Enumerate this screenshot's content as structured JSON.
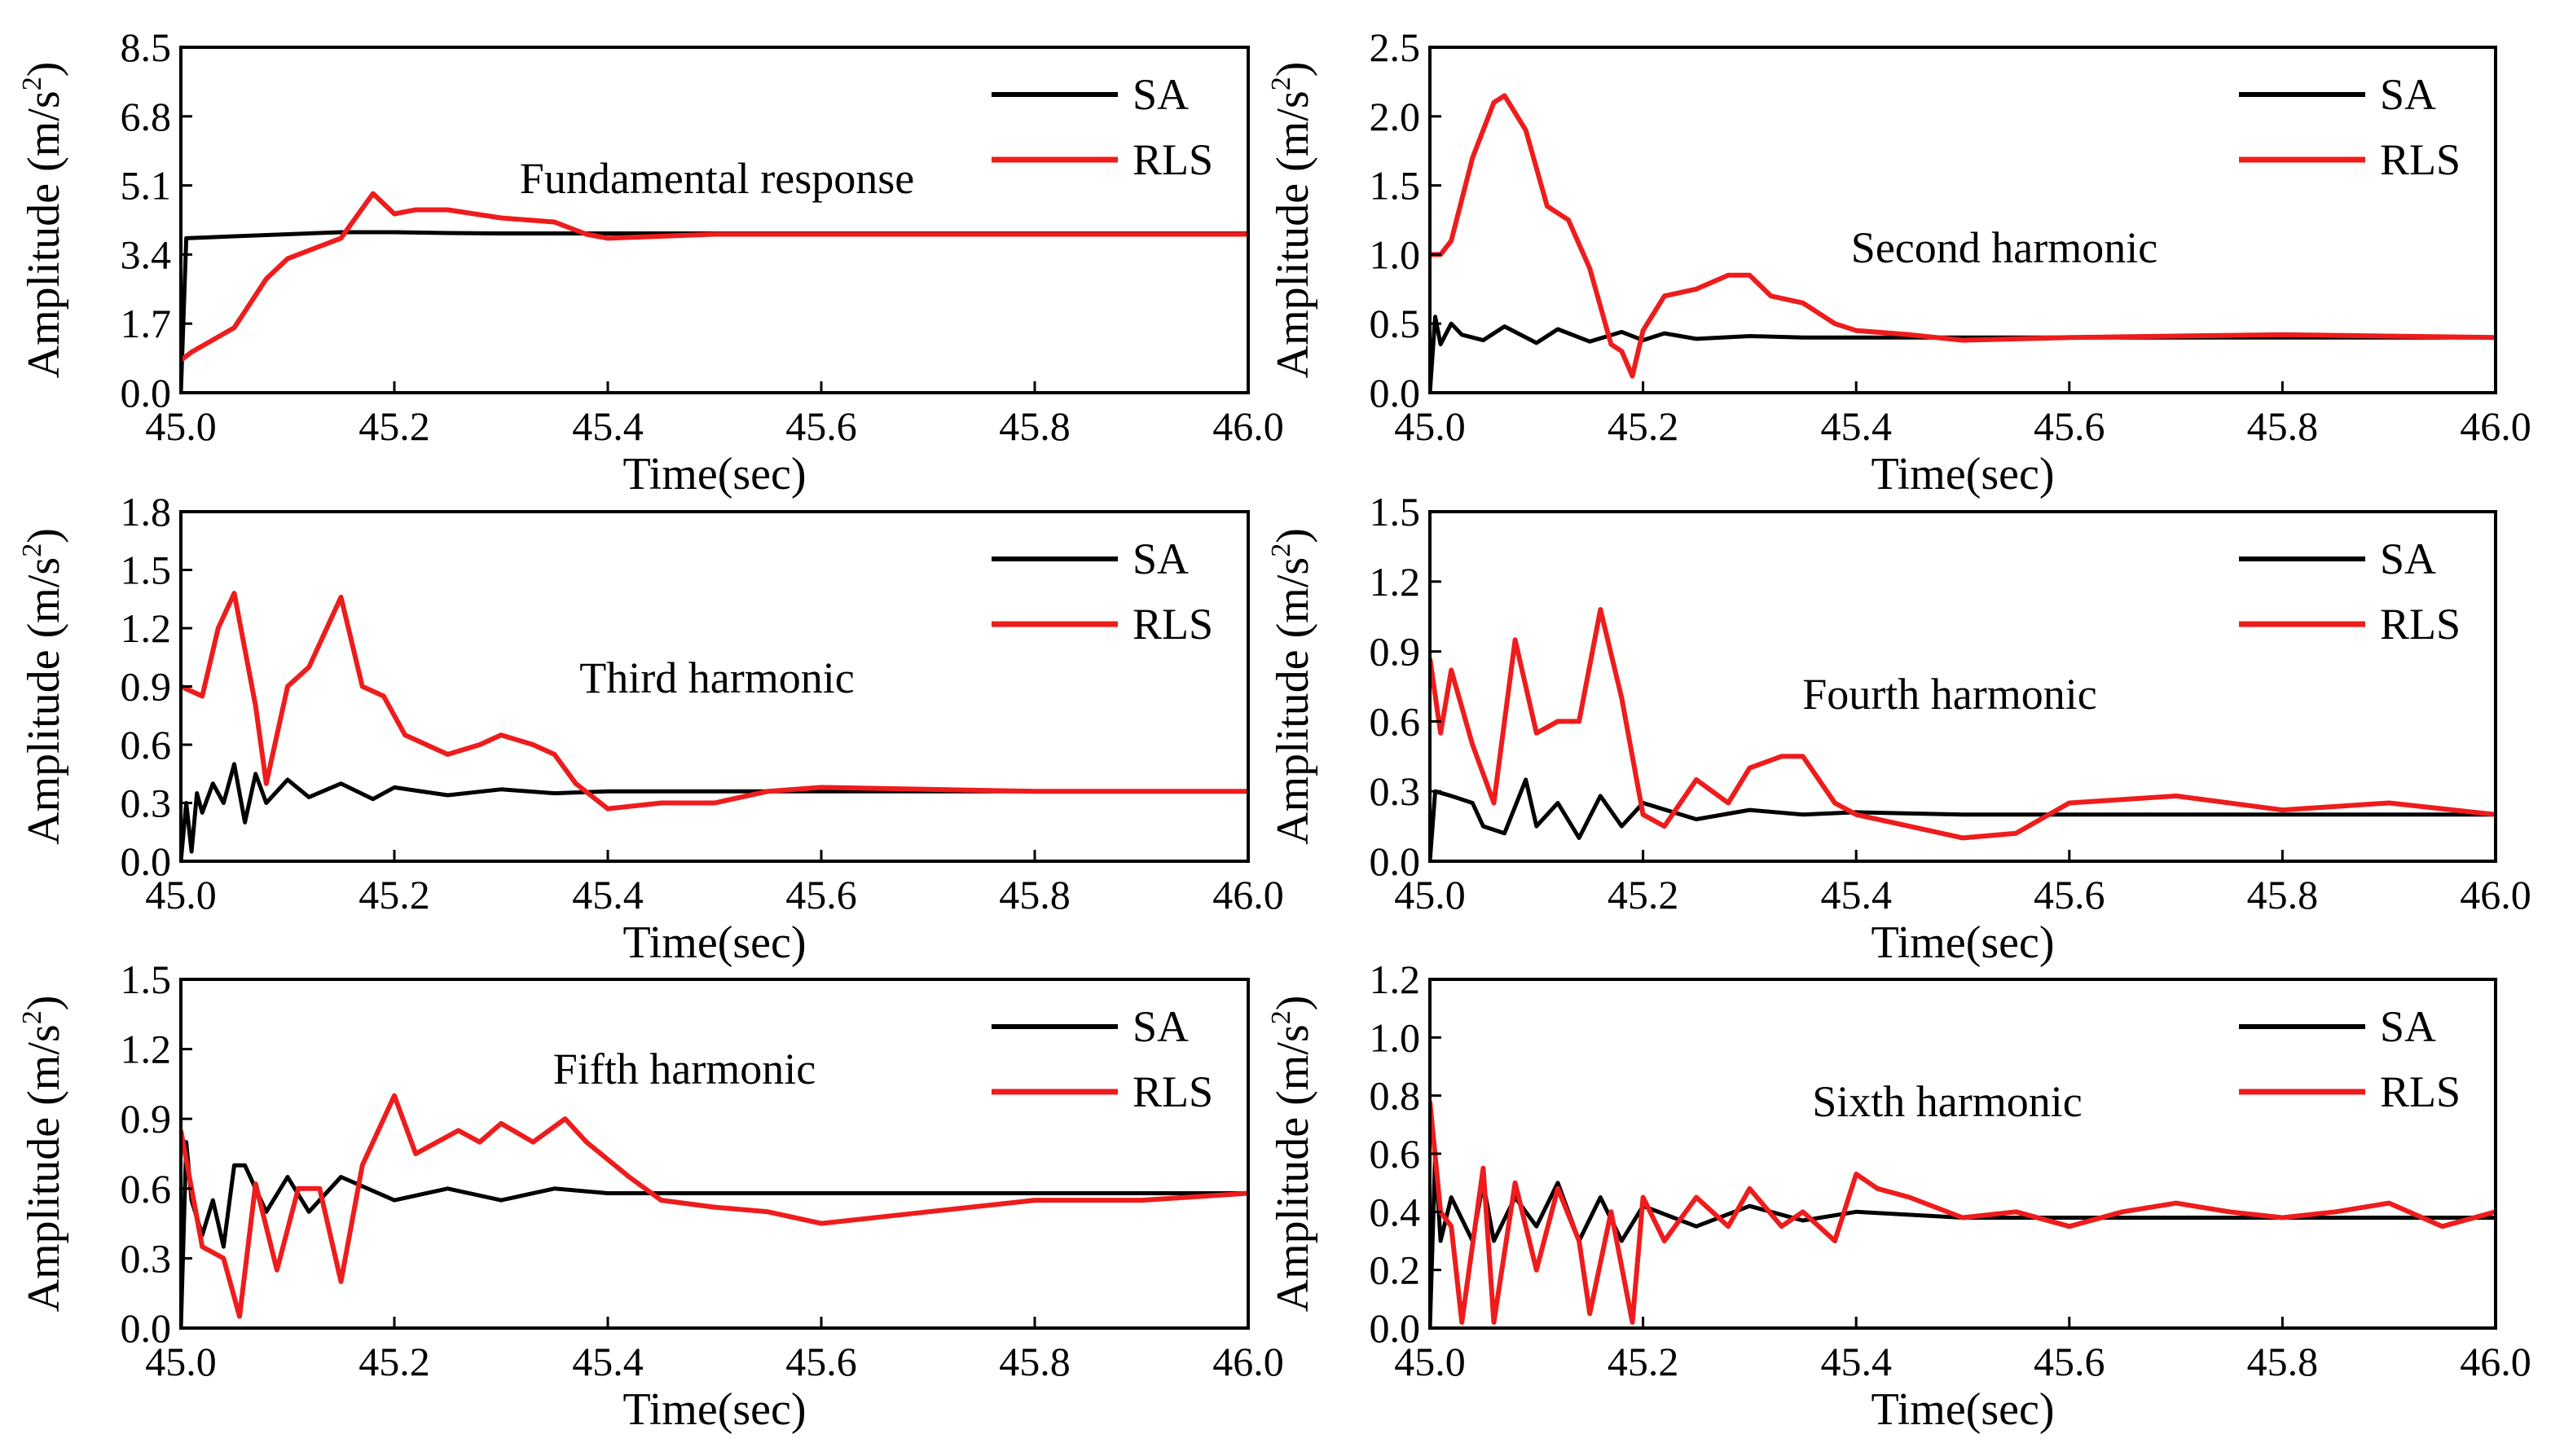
{
  "figure": {
    "series_colors": {
      "SA": "#000000",
      "RLS": "#ee1c1c"
    }
  },
  "chart_data": [
    {
      "type": "line",
      "title": "Fundamental response",
      "xlabel": "Time(sec)",
      "ylabel": "Amplitude (m/s",
      "ylabel_sup": "2",
      "ylabel_close": ")",
      "xlim": [
        45.0,
        46.0
      ],
      "ylim": [
        0.0,
        8.5
      ],
      "xticks": [
        "45.0",
        "45.2",
        "45.4",
        "45.6",
        "45.8",
        "46.0"
      ],
      "yticks": [
        "0.0",
        "1.7",
        "3.4",
        "5.1",
        "6.8",
        "8.5"
      ],
      "legend": [
        "SA",
        "RLS"
      ],
      "legend_position": "top-right",
      "series": [
        {
          "name": "SA",
          "x": [
            45.0,
            45.005,
            45.05,
            45.1,
            45.15,
            45.2,
            45.25,
            45.3,
            45.4,
            45.5,
            45.6,
            45.8,
            46.0
          ],
          "y": [
            0.0,
            3.8,
            3.85,
            3.9,
            3.95,
            3.95,
            3.93,
            3.92,
            3.92,
            3.92,
            3.92,
            3.92,
            3.92
          ]
        },
        {
          "name": "RLS",
          "x": [
            45.0,
            45.01,
            45.03,
            45.05,
            45.08,
            45.1,
            45.15,
            45.18,
            45.2,
            45.22,
            45.25,
            45.3,
            45.35,
            45.38,
            45.4,
            45.5,
            45.6,
            45.8,
            46.0
          ],
          "y": [
            0.8,
            1.0,
            1.3,
            1.6,
            2.8,
            3.3,
            3.8,
            4.9,
            4.4,
            4.5,
            4.5,
            4.3,
            4.2,
            3.9,
            3.8,
            3.9,
            3.9,
            3.9,
            3.9
          ]
        }
      ]
    },
    {
      "type": "line",
      "title": "Second harmonic",
      "xlabel": "Time(sec)",
      "ylabel": "Amplitude (m/s",
      "ylabel_sup": "2",
      "ylabel_close": ")",
      "xlim": [
        45.0,
        46.0
      ],
      "ylim": [
        0.0,
        2.5
      ],
      "xticks": [
        "45.0",
        "45.2",
        "45.4",
        "45.6",
        "45.8",
        "46.0"
      ],
      "yticks": [
        "0.0",
        "0.5",
        "1.0",
        "1.5",
        "2.0",
        "2.5"
      ],
      "legend": [
        "SA",
        "RLS"
      ],
      "legend_position": "top-right",
      "series": [
        {
          "name": "SA",
          "x": [
            45.0,
            45.005,
            45.01,
            45.02,
            45.03,
            45.05,
            45.07,
            45.1,
            45.12,
            45.15,
            45.18,
            45.2,
            45.22,
            45.25,
            45.3,
            45.35,
            45.4,
            45.5,
            45.6,
            45.8,
            46.0
          ],
          "y": [
            0.0,
            0.55,
            0.35,
            0.5,
            0.42,
            0.38,
            0.48,
            0.36,
            0.46,
            0.37,
            0.44,
            0.38,
            0.43,
            0.39,
            0.41,
            0.4,
            0.4,
            0.4,
            0.4,
            0.4,
            0.4
          ]
        },
        {
          "name": "RLS",
          "x": [
            45.0,
            45.01,
            45.02,
            45.04,
            45.06,
            45.07,
            45.09,
            45.11,
            45.13,
            45.15,
            45.17,
            45.18,
            45.19,
            45.2,
            45.22,
            45.25,
            45.28,
            45.3,
            45.32,
            45.35,
            45.38,
            45.4,
            45.45,
            45.5,
            45.6,
            45.8,
            46.0
          ],
          "y": [
            1.0,
            1.0,
            1.1,
            1.7,
            2.1,
            2.15,
            1.9,
            1.35,
            1.25,
            0.9,
            0.35,
            0.3,
            0.12,
            0.45,
            0.7,
            0.75,
            0.85,
            0.85,
            0.7,
            0.65,
            0.5,
            0.45,
            0.42,
            0.38,
            0.4,
            0.42,
            0.4
          ]
        }
      ]
    },
    {
      "type": "line",
      "title": "Third harmonic",
      "xlabel": "Time(sec)",
      "ylabel": "Amplitude (m/s",
      "ylabel_sup": "2",
      "ylabel_close": ")",
      "xlim": [
        45.0,
        46.0
      ],
      "ylim": [
        0.0,
        1.8
      ],
      "xticks": [
        "45.0",
        "45.2",
        "45.4",
        "45.6",
        "45.8",
        "46.0"
      ],
      "yticks": [
        "0.0",
        "0.3",
        "0.6",
        "0.9",
        "1.2",
        "1.5",
        "1.8"
      ],
      "legend": [
        "SA",
        "RLS"
      ],
      "legend_position": "top-right",
      "series": [
        {
          "name": "SA",
          "x": [
            45.0,
            45.005,
            45.01,
            45.015,
            45.02,
            45.03,
            45.04,
            45.05,
            45.06,
            45.07,
            45.08,
            45.1,
            45.12,
            45.15,
            45.18,
            45.2,
            45.25,
            45.3,
            45.35,
            45.4,
            45.5,
            45.6,
            45.8,
            46.0
          ],
          "y": [
            0.0,
            0.3,
            0.05,
            0.35,
            0.25,
            0.4,
            0.3,
            0.5,
            0.2,
            0.45,
            0.3,
            0.42,
            0.33,
            0.4,
            0.32,
            0.38,
            0.34,
            0.37,
            0.35,
            0.36,
            0.36,
            0.36,
            0.36,
            0.36
          ]
        },
        {
          "name": "RLS",
          "x": [
            45.0,
            45.02,
            45.035,
            45.05,
            45.07,
            45.08,
            45.1,
            45.12,
            45.15,
            45.17,
            45.19,
            45.21,
            45.23,
            45.25,
            45.28,
            45.3,
            45.33,
            45.35,
            45.37,
            45.4,
            45.45,
            45.5,
            45.55,
            45.6,
            45.8,
            46.0
          ],
          "y": [
            0.9,
            0.85,
            1.2,
            1.38,
            0.8,
            0.4,
            0.9,
            1.0,
            1.36,
            0.9,
            0.85,
            0.65,
            0.6,
            0.55,
            0.6,
            0.65,
            0.6,
            0.55,
            0.4,
            0.27,
            0.3,
            0.3,
            0.36,
            0.38,
            0.36,
            0.36
          ]
        }
      ]
    },
    {
      "type": "line",
      "title": "Fourth harmonic",
      "xlabel": "Time(sec)",
      "ylabel": "Amplitude (m/s",
      "ylabel_sup": "2",
      "ylabel_close": ")",
      "xlim": [
        45.0,
        46.0
      ],
      "ylim": [
        0.0,
        1.5
      ],
      "xticks": [
        "45.0",
        "45.2",
        "45.4",
        "45.6",
        "45.8",
        "46.0"
      ],
      "yticks": [
        "0.0",
        "0.3",
        "0.6",
        "0.9",
        "1.2",
        "1.5"
      ],
      "legend": [
        "SA",
        "RLS"
      ],
      "legend_position": "top-right",
      "series": [
        {
          "name": "SA",
          "x": [
            45.0,
            45.005,
            45.02,
            45.04,
            45.05,
            45.07,
            45.09,
            45.1,
            45.12,
            45.14,
            45.16,
            45.18,
            45.2,
            45.25,
            45.3,
            45.35,
            45.4,
            45.5,
            45.6,
            45.8,
            46.0
          ],
          "y": [
            0.0,
            0.3,
            0.28,
            0.25,
            0.15,
            0.12,
            0.35,
            0.15,
            0.25,
            0.1,
            0.28,
            0.15,
            0.25,
            0.18,
            0.22,
            0.2,
            0.21,
            0.2,
            0.2,
            0.2,
            0.2
          ]
        },
        {
          "name": "RLS",
          "x": [
            45.0,
            45.01,
            45.02,
            45.04,
            45.06,
            45.08,
            45.1,
            45.12,
            45.14,
            45.16,
            45.18,
            45.2,
            45.22,
            45.25,
            45.28,
            45.3,
            45.33,
            45.35,
            45.38,
            45.4,
            45.45,
            45.5,
            45.55,
            45.6,
            45.7,
            45.8,
            45.9,
            46.0
          ],
          "y": [
            0.87,
            0.55,
            0.82,
            0.5,
            0.25,
            0.95,
            0.55,
            0.6,
            0.6,
            1.08,
            0.7,
            0.2,
            0.15,
            0.35,
            0.25,
            0.4,
            0.45,
            0.45,
            0.25,
            0.2,
            0.15,
            0.1,
            0.12,
            0.25,
            0.28,
            0.22,
            0.25,
            0.2
          ]
        }
      ]
    },
    {
      "type": "line",
      "title": "Fifth harmonic",
      "xlabel": "Time(sec)",
      "ylabel": "Amplitude (m/s",
      "ylabel_sup": "2",
      "ylabel_close": ")",
      "xlim": [
        45.0,
        46.0
      ],
      "ylim": [
        0.0,
        1.5
      ],
      "xticks": [
        "45.0",
        "45.2",
        "45.4",
        "45.6",
        "45.8",
        "46.0"
      ],
      "yticks": [
        "0.0",
        "0.3",
        "0.6",
        "0.9",
        "1.2",
        "1.5"
      ],
      "legend": [
        "SA",
        "RLS"
      ],
      "legend_position": "top-right",
      "series": [
        {
          "name": "SA",
          "x": [
            45.0,
            45.005,
            45.01,
            45.02,
            45.03,
            45.04,
            45.05,
            45.06,
            45.08,
            45.1,
            45.12,
            45.15,
            45.2,
            45.25,
            45.3,
            45.35,
            45.4,
            45.5,
            45.6,
            45.8,
            46.0
          ],
          "y": [
            0.0,
            0.8,
            0.55,
            0.4,
            0.55,
            0.35,
            0.7,
            0.7,
            0.5,
            0.65,
            0.5,
            0.65,
            0.55,
            0.6,
            0.55,
            0.6,
            0.58,
            0.58,
            0.58,
            0.58,
            0.58
          ]
        },
        {
          "name": "RLS",
          "x": [
            45.0,
            45.02,
            45.04,
            45.055,
            45.07,
            45.09,
            45.11,
            45.13,
            45.15,
            45.17,
            45.2,
            45.22,
            45.26,
            45.28,
            45.3,
            45.33,
            45.36,
            45.38,
            45.42,
            45.45,
            45.5,
            45.55,
            45.6,
            45.7,
            45.8,
            45.9,
            46.0
          ],
          "y": [
            0.85,
            0.35,
            0.3,
            0.05,
            0.62,
            0.25,
            0.6,
            0.6,
            0.2,
            0.7,
            1.0,
            0.75,
            0.85,
            0.8,
            0.88,
            0.8,
            0.9,
            0.8,
            0.65,
            0.55,
            0.52,
            0.5,
            0.45,
            0.5,
            0.55,
            0.55,
            0.58
          ]
        }
      ]
    },
    {
      "type": "line",
      "title": "Sixth harmonic",
      "xlabel": "Time(sec)",
      "ylabel": "Amplitude (m/s",
      "ylabel_sup": "2",
      "ylabel_close": ")",
      "xlim": [
        45.0,
        46.0
      ],
      "ylim": [
        0.0,
        1.2
      ],
      "xticks": [
        "45.0",
        "45.2",
        "45.4",
        "45.6",
        "45.8",
        "46.0"
      ],
      "yticks": [
        "0.0",
        "0.2",
        "0.4",
        "0.6",
        "0.8",
        "1.0",
        "1.2"
      ],
      "legend": [
        "SA",
        "RLS"
      ],
      "legend_position": "top-right",
      "series": [
        {
          "name": "SA",
          "x": [
            45.0,
            45.005,
            45.01,
            45.02,
            45.04,
            45.05,
            45.06,
            45.08,
            45.1,
            45.12,
            45.14,
            45.16,
            45.18,
            45.2,
            45.25,
            45.3,
            45.35,
            45.4,
            45.5,
            45.6,
            45.8,
            46.0
          ],
          "y": [
            0.0,
            0.6,
            0.3,
            0.45,
            0.3,
            0.5,
            0.3,
            0.45,
            0.35,
            0.5,
            0.3,
            0.45,
            0.3,
            0.42,
            0.35,
            0.42,
            0.37,
            0.4,
            0.38,
            0.38,
            0.38,
            0.38
          ]
        },
        {
          "name": "RLS",
          "x": [
            45.0,
            45.01,
            45.02,
            45.03,
            45.05,
            45.06,
            45.08,
            45.1,
            45.12,
            45.14,
            45.15,
            45.17,
            45.19,
            45.2,
            45.22,
            45.25,
            45.28,
            45.3,
            45.33,
            45.35,
            45.38,
            45.4,
            45.42,
            45.45,
            45.5,
            45.55,
            45.6,
            45.65,
            45.7,
            45.75,
            45.8,
            45.85,
            45.9,
            45.95,
            46.0
          ],
          "y": [
            0.78,
            0.4,
            0.35,
            0.02,
            0.55,
            0.02,
            0.5,
            0.2,
            0.48,
            0.3,
            0.05,
            0.4,
            0.02,
            0.45,
            0.3,
            0.45,
            0.35,
            0.48,
            0.35,
            0.4,
            0.3,
            0.53,
            0.48,
            0.45,
            0.38,
            0.4,
            0.35,
            0.4,
            0.43,
            0.4,
            0.38,
            0.4,
            0.43,
            0.35,
            0.4
          ]
        }
      ]
    }
  ]
}
